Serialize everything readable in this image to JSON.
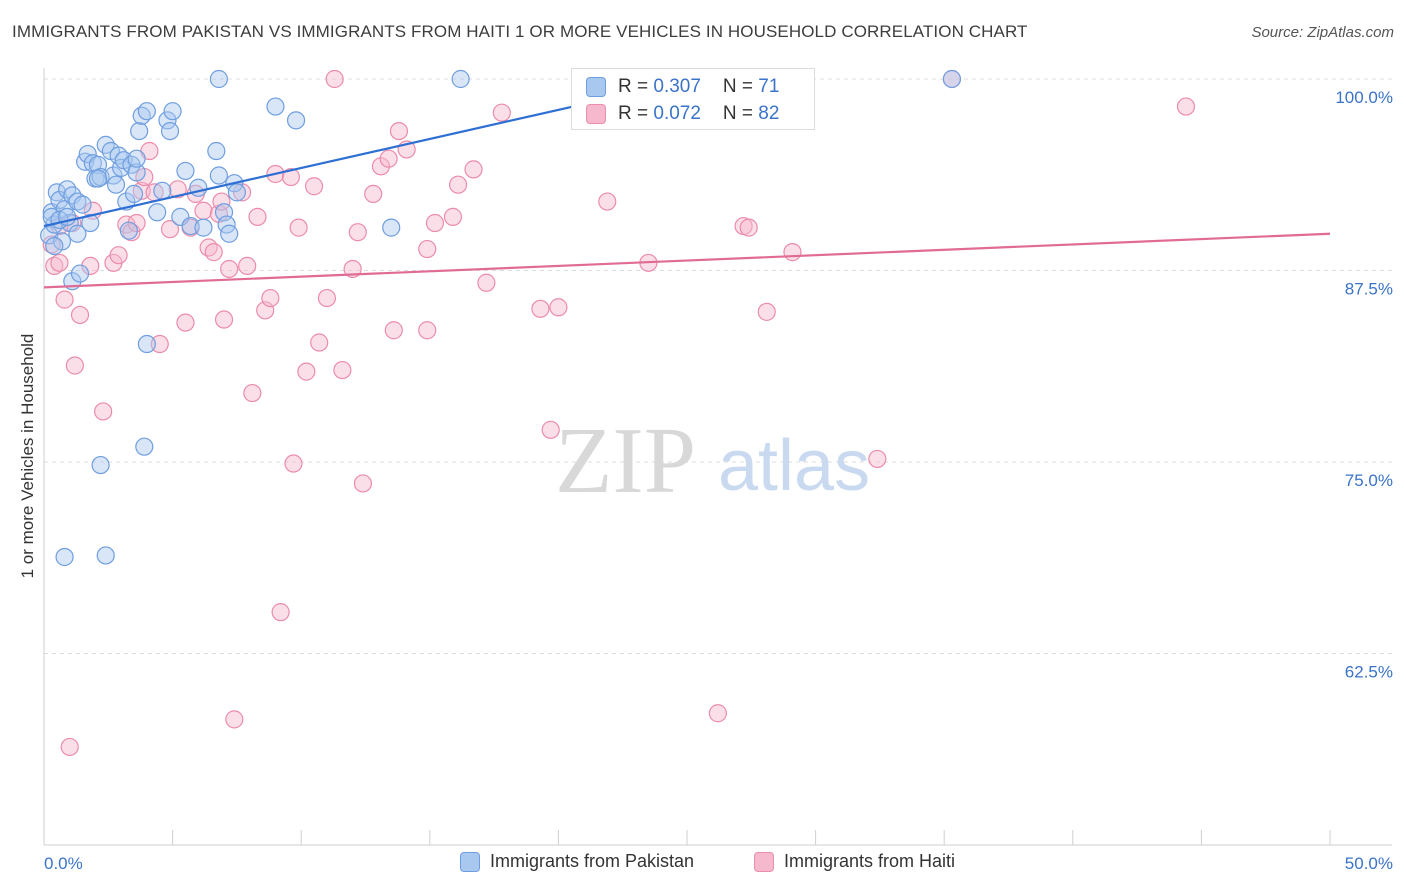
{
  "title": "IMMIGRANTS FROM PAKISTAN VS IMMIGRANTS FROM HAITI 1 OR MORE VEHICLES IN HOUSEHOLD CORRELATION CHART",
  "source": "Source: ZipAtlas.com",
  "watermark": {
    "part1": "ZIP",
    "part2": "atlas"
  },
  "colors": {
    "pakistan_fill": "#a9c8f0",
    "pakistan_stroke": "#6f9ee0",
    "pakistan_line": "#2e6fd4",
    "haiti_fill": "#f6b8cc",
    "haiti_stroke": "#eb8cab",
    "haiti_line": "#e06c96",
    "axis_text": "#3a73c8",
    "grid": "#dcdcdc"
  },
  "legend": {
    "pakistan": {
      "r_label": "R = ",
      "r": "0.307",
      "n_label": "N = ",
      "n": "71"
    },
    "haiti": {
      "r_label": "R = ",
      "r": "0.072",
      "n_label": "N = ",
      "n": "82"
    }
  },
  "bottom_legend": {
    "pakistan": "Immigrants from Pakistan",
    "haiti": "Immigrants from Haiti"
  },
  "chart_data": {
    "type": "scatter",
    "title": "IMMIGRANTS FROM PAKISTAN VS IMMIGRANTS FROM HAITI 1 OR MORE VEHICLES IN HOUSEHOLD CORRELATION CHART",
    "xlabel": "",
    "ylabel": "1 or more Vehicles in Household",
    "xlim": [
      0,
      50
    ],
    "ylim": [
      50,
      100
    ],
    "x_tick_labels": [
      "0.0%",
      "50.0%"
    ],
    "y_ticks": [
      62.5,
      75.0,
      87.5,
      100.0
    ],
    "y_tick_labels": [
      "62.5%",
      "75.0%",
      "87.5%",
      "100.0%"
    ],
    "grid": true,
    "series": [
      {
        "name": "Immigrants from Pakistan",
        "color": "#a9c8f0",
        "trend": {
          "x": [
            0.0,
            24.0
          ],
          "y": [
            90.4,
            99.5
          ]
        },
        "points": [
          [
            0.2,
            89.8
          ],
          [
            0.3,
            91.3
          ],
          [
            0.4,
            90.5
          ],
          [
            0.5,
            92.6
          ],
          [
            0.6,
            92.1
          ],
          [
            0.7,
            89.4
          ],
          [
            0.8,
            91.5
          ],
          [
            0.8,
            68.8
          ],
          [
            0.9,
            92.8
          ],
          [
            1.0,
            90.6
          ],
          [
            1.1,
            92.4
          ],
          [
            1.1,
            86.8
          ],
          [
            1.3,
            92.0
          ],
          [
            1.3,
            89.9
          ],
          [
            1.4,
            87.3
          ],
          [
            1.6,
            94.6
          ],
          [
            1.7,
            95.1
          ],
          [
            1.8,
            90.6
          ],
          [
            1.9,
            94.5
          ],
          [
            2.0,
            93.5
          ],
          [
            2.1,
            94.4
          ],
          [
            2.2,
            93.6
          ],
          [
            2.2,
            74.8
          ],
          [
            2.4,
            95.7
          ],
          [
            2.4,
            68.9
          ],
          [
            2.6,
            95.3
          ],
          [
            2.7,
            93.7
          ],
          [
            2.8,
            93.1
          ],
          [
            2.9,
            95.0
          ],
          [
            3.0,
            94.2
          ],
          [
            3.1,
            94.7
          ],
          [
            3.2,
            92.0
          ],
          [
            3.3,
            90.1
          ],
          [
            3.4,
            94.4
          ],
          [
            3.6,
            93.9
          ],
          [
            3.6,
            94.8
          ],
          [
            3.7,
            96.6
          ],
          [
            3.8,
            97.6
          ],
          [
            4.0,
            97.9
          ],
          [
            4.0,
            82.7
          ],
          [
            3.9,
            76.0
          ],
          [
            4.4,
            91.3
          ],
          [
            4.6,
            92.7
          ],
          [
            4.8,
            97.3
          ],
          [
            4.9,
            96.6
          ],
          [
            5.0,
            97.9
          ],
          [
            5.3,
            91.0
          ],
          [
            5.5,
            94.0
          ],
          [
            5.7,
            90.4
          ],
          [
            6.0,
            92.9
          ],
          [
            6.2,
            90.3
          ],
          [
            6.7,
            95.3
          ],
          [
            6.8,
            93.7
          ],
          [
            7.0,
            91.3
          ],
          [
            7.1,
            90.5
          ],
          [
            7.2,
            89.9
          ],
          [
            7.4,
            93.2
          ],
          [
            7.5,
            92.6
          ],
          [
            6.8,
            100.0
          ],
          [
            9.0,
            98.2
          ],
          [
            9.8,
            97.3
          ],
          [
            13.5,
            90.3
          ],
          [
            16.2,
            100.0
          ],
          [
            35.3,
            100.0
          ],
          [
            0.3,
            91.0
          ],
          [
            0.4,
            89.1
          ],
          [
            0.6,
            90.8
          ],
          [
            0.9,
            91.0
          ],
          [
            1.5,
            91.8
          ],
          [
            2.1,
            93.5
          ],
          [
            3.5,
            92.5
          ]
        ]
      },
      {
        "name": "Immigrants from Haiti",
        "color": "#f6b8cc",
        "trend": {
          "x": [
            0.0,
            50.0
          ],
          "y": [
            86.4,
            89.9
          ]
        },
        "points": [
          [
            0.3,
            89.2
          ],
          [
            0.4,
            87.8
          ],
          [
            0.6,
            88.0
          ],
          [
            0.8,
            85.6
          ],
          [
            1.0,
            56.4
          ],
          [
            1.2,
            81.3
          ],
          [
            1.4,
            84.6
          ],
          [
            1.8,
            87.8
          ],
          [
            1.9,
            91.4
          ],
          [
            2.3,
            78.3
          ],
          [
            2.7,
            88.0
          ],
          [
            2.9,
            88.5
          ],
          [
            3.2,
            90.5
          ],
          [
            3.4,
            90.0
          ],
          [
            3.6,
            90.6
          ],
          [
            3.8,
            92.7
          ],
          [
            3.9,
            93.6
          ],
          [
            4.1,
            95.3
          ],
          [
            4.3,
            92.6
          ],
          [
            4.5,
            82.7
          ],
          [
            4.9,
            90.2
          ],
          [
            5.2,
            92.8
          ],
          [
            5.5,
            84.1
          ],
          [
            5.7,
            90.3
          ],
          [
            5.9,
            92.5
          ],
          [
            6.2,
            91.4
          ],
          [
            6.4,
            89.0
          ],
          [
            6.6,
            88.7
          ],
          [
            6.8,
            91.2
          ],
          [
            7.0,
            84.3
          ],
          [
            7.2,
            87.6
          ],
          [
            7.4,
            58.2
          ],
          [
            7.7,
            92.6
          ],
          [
            7.9,
            87.8
          ],
          [
            8.1,
            79.5
          ],
          [
            8.3,
            91.0
          ],
          [
            8.6,
            84.9
          ],
          [
            8.8,
            85.7
          ],
          [
            9.0,
            93.8
          ],
          [
            9.2,
            65.2
          ],
          [
            9.6,
            93.6
          ],
          [
            9.7,
            74.9
          ],
          [
            9.9,
            90.3
          ],
          [
            10.2,
            80.9
          ],
          [
            10.5,
            93.0
          ],
          [
            10.7,
            82.8
          ],
          [
            11.0,
            85.7
          ],
          [
            11.3,
            100.0
          ],
          [
            11.6,
            81.0
          ],
          [
            12.0,
            87.6
          ],
          [
            12.2,
            90.0
          ],
          [
            12.4,
            73.6
          ],
          [
            12.8,
            92.5
          ],
          [
            13.1,
            94.3
          ],
          [
            13.4,
            94.8
          ],
          [
            13.6,
            83.6
          ],
          [
            13.8,
            96.6
          ],
          [
            14.1,
            95.4
          ],
          [
            14.9,
            88.9
          ],
          [
            14.9,
            83.6
          ],
          [
            15.2,
            90.6
          ],
          [
            15.9,
            91.0
          ],
          [
            16.1,
            93.1
          ],
          [
            16.7,
            94.1
          ],
          [
            17.2,
            86.7
          ],
          [
            17.8,
            97.8
          ],
          [
            19.3,
            85.0
          ],
          [
            19.7,
            77.1
          ],
          [
            20.0,
            85.1
          ],
          [
            21.9,
            92.0
          ],
          [
            23.5,
            88.0
          ],
          [
            26.2,
            58.6
          ],
          [
            27.2,
            90.4
          ],
          [
            27.4,
            90.3
          ],
          [
            28.1,
            84.8
          ],
          [
            29.1,
            88.7
          ],
          [
            32.4,
            75.2
          ],
          [
            35.3,
            100.0
          ],
          [
            44.4,
            98.2
          ],
          [
            1.1,
            90.6
          ],
          [
            0.6,
            90.4
          ],
          [
            6.9,
            92.0
          ]
        ]
      }
    ]
  }
}
